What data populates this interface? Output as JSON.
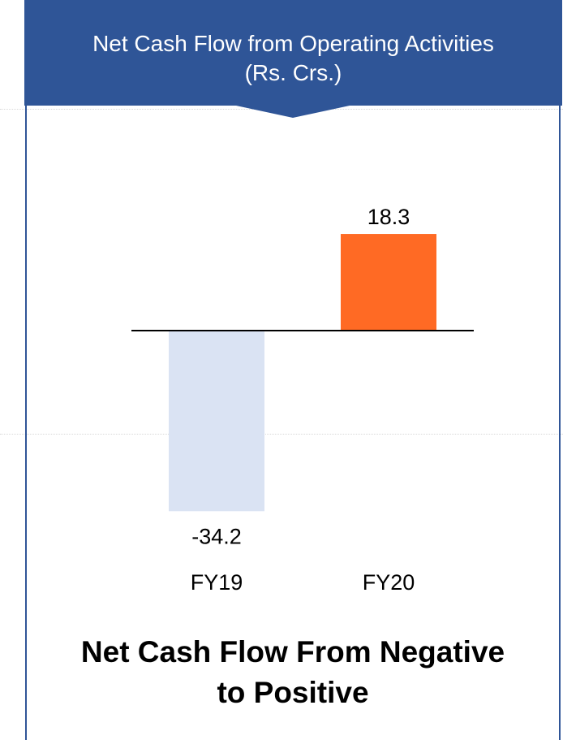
{
  "header": {
    "title_line1": "Net Cash Flow from Operating Activities",
    "title_line2": "(Rs. Crs.)",
    "banner_color": "#2f5597"
  },
  "chart_data": {
    "type": "bar",
    "categories": [
      "FY19",
      "FY20"
    ],
    "values": [
      -34.2,
      18.3
    ],
    "value_labels": [
      "-34.2",
      "18.3"
    ],
    "bar_colors": [
      "#dae3f3",
      "#ff6a24"
    ],
    "title": "Net Cash Flow from Operating Activities (Rs. Crs.)",
    "xlabel": "",
    "ylabel": "",
    "grid": false
  },
  "footer": {
    "line1": "Net Cash Flow From Negative",
    "line2": "to Positive"
  }
}
